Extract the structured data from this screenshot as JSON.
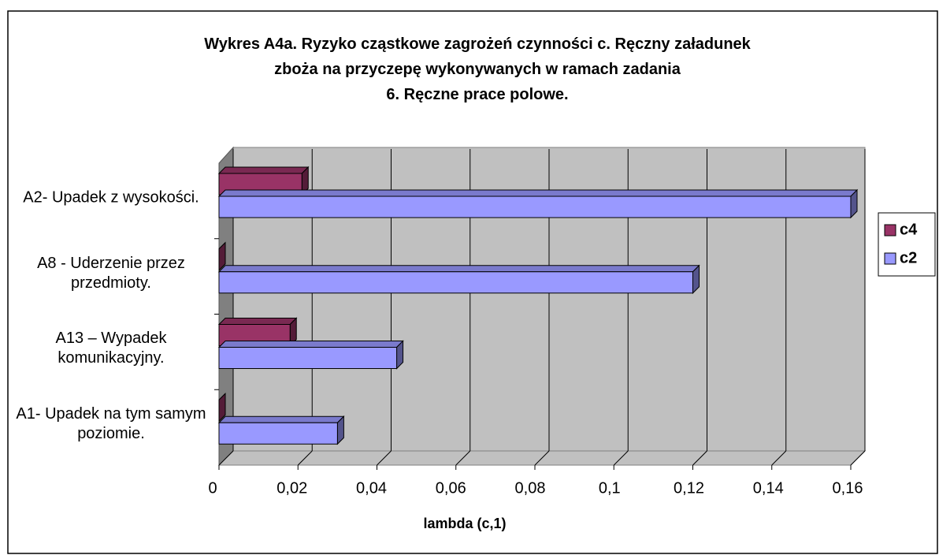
{
  "chart_data": {
    "type": "bar3d-horizontal",
    "title": [
      "Wykres A4a. Ryzyko cząstkowe zagrożeń czynności c. Ręczny załadunek",
      "zboża na przyczepę wykonywanych w ramach zadania",
      "6. Ręczne prace polowe."
    ],
    "categories": [
      "A2- Upadek z wysokości.",
      "A8 - Uderzenie przez przedmioty.",
      "A13 – Wypadek komunikacyjny.",
      "A1- Upadek na tym samym poziomie."
    ],
    "series": [
      {
        "name": "c4",
        "color": "#993366",
        "values": [
          0.021,
          0,
          0.018,
          0
        ]
      },
      {
        "name": "c2",
        "color": "#9999ff",
        "values": [
          0.16,
          0.12,
          0.045,
          0.03
        ]
      }
    ],
    "xlabel": "lambda (c,1)",
    "xlim": [
      0,
      0.16
    ],
    "xticks": [
      0,
      {
        "value": 0.02,
        "label": "0,02"
      },
      {
        "value": 0.04,
        "label": "0,04"
      },
      {
        "value": 0.06,
        "label": "0,06"
      },
      {
        "value": 0.08,
        "label": "0,08"
      },
      {
        "value": 0.1,
        "label": "0,1"
      },
      {
        "value": 0.12,
        "label": "0,12"
      },
      {
        "value": 0.14,
        "label": "0,14"
      },
      {
        "value": 0.16,
        "label": "0,16"
      }
    ],
    "grid": true,
    "legend": "right"
  }
}
